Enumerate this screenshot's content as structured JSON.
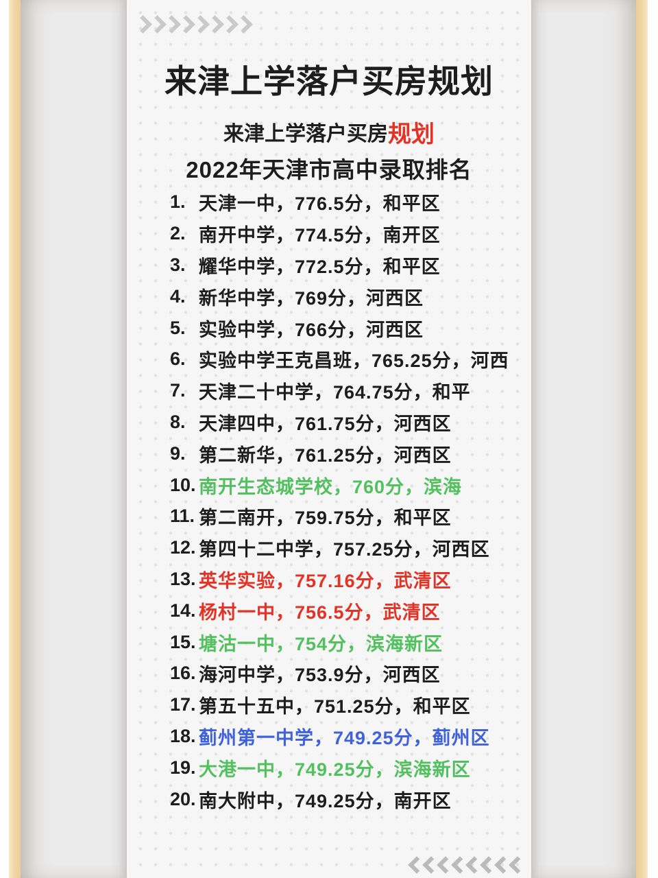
{
  "poster": {
    "title": "来津上学落户买房规划",
    "subtitle": {
      "black": "来津上学落户买房",
      "red": "规划"
    },
    "section_heading": "2022年天津市高中录取排名"
  },
  "ranking": [
    {
      "rank": "1.",
      "text": "天津一中，776.5分，和平区",
      "color": "black"
    },
    {
      "rank": "2.",
      "text": "南开中学，774.5分，南开区",
      "color": "black"
    },
    {
      "rank": "3.",
      "text": "耀华中学，772.5分，和平区",
      "color": "black"
    },
    {
      "rank": "4.",
      "text": "新华中学，769分，河西区",
      "color": "black"
    },
    {
      "rank": "5.",
      "text": "实验中学，766分，河西区",
      "color": "black"
    },
    {
      "rank": "6.",
      "text": "实验中学王克昌班，765.25分，河西",
      "color": "black"
    },
    {
      "rank": "7.",
      "text": "天津二十中学，764.75分，和平",
      "color": "black"
    },
    {
      "rank": "8.",
      "text": "天津四中，761.75分，河西区",
      "color": "black"
    },
    {
      "rank": "9.",
      "text": "第二新华，761.25分，河西区",
      "color": "black"
    },
    {
      "rank": "10.",
      "text": "南开生态城学校，760分，滨海",
      "color": "green"
    },
    {
      "rank": "11.",
      "text": "第二南开，759.75分，和平区",
      "color": "black"
    },
    {
      "rank": "12.",
      "text": "第四十二中学，757.25分，河西区",
      "color": "black"
    },
    {
      "rank": "13.",
      "text": "英华实验，757.16分，武清区",
      "color": "red"
    },
    {
      "rank": "14.",
      "text": "杨村一中，756.5分，武清区",
      "color": "red"
    },
    {
      "rank": "15.",
      "text": "塘沽一中，754分，滨海新区",
      "color": "green"
    },
    {
      "rank": "16.",
      "text": "海河中学，753.9分，河西区",
      "color": "black"
    },
    {
      "rank": "17.",
      "text": "第五十五中，751.25分，和平区",
      "color": "black"
    },
    {
      "rank": "18.",
      "text": "蓟州第一中学，749.25分，蓟州区",
      "color": "blue"
    },
    {
      "rank": "19.",
      "text": "大港一中，749.25分，滨海新区",
      "color": "green"
    },
    {
      "rank": "20.",
      "text": "南大附中，749.25分，南开区",
      "color": "black"
    }
  ],
  "decor": {
    "top_arrows": {
      "icon": "chevron-right-icon",
      "count": 8
    },
    "bottom_arrows": {
      "icon": "chevron-left-icon",
      "count": 8
    }
  },
  "colors": {
    "black": "#1d1d1d",
    "red": "#e23327",
    "green": "#53c05f",
    "blue": "#3f62d9",
    "frame_tan": "#f1d7a8",
    "mat_gray": "#eaeaea",
    "card_bg": "#f6f6f6",
    "arrow_gray": "#c4c4c4"
  }
}
